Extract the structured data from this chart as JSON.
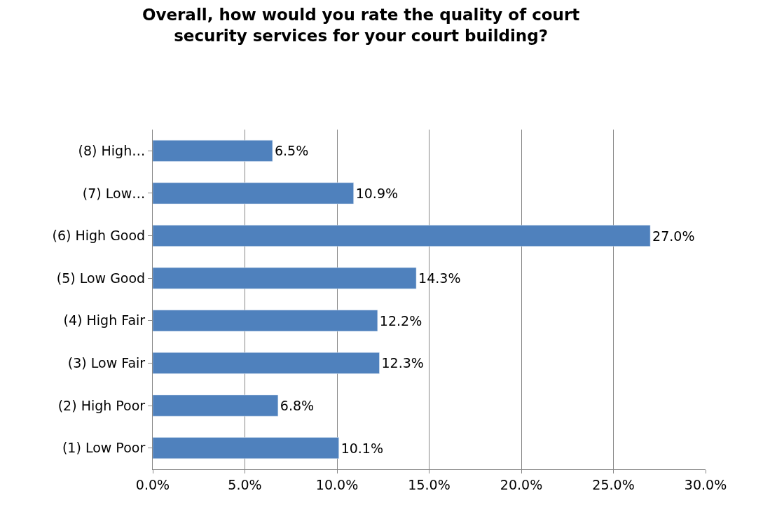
{
  "chart_data": {
    "type": "bar",
    "orientation": "horizontal",
    "title": "Overall, how would you rate the quality of court security services for your court building?",
    "categories": [
      "(8) High…",
      "(7) Low…",
      "(6) High Good",
      "(5) Low Good",
      "(4) High Fair",
      "(3) Low Fair",
      "(2) High Poor",
      "(1) Low Poor"
    ],
    "values": [
      6.5,
      10.9,
      27.0,
      14.3,
      12.2,
      12.3,
      6.8,
      10.1
    ],
    "value_labels": [
      "6.5%",
      "10.9%",
      "27.0%",
      "14.3%",
      "12.2%",
      "12.3%",
      "6.8%",
      "10.1%"
    ],
    "color": "#4f81bd",
    "xlim": [
      0,
      30
    ],
    "xticks": [
      {
        "value": 0,
        "label": "0.0%"
      },
      {
        "value": 5,
        "label": "5.0%"
      },
      {
        "value": 10,
        "label": "10.0%"
      },
      {
        "value": 15,
        "label": "15.0%"
      },
      {
        "value": 20,
        "label": "20.0%"
      },
      {
        "value": 25,
        "label": "25.0%"
      },
      {
        "value": 30,
        "label": "30.0%"
      }
    ],
    "grid": "x",
    "legend": false
  }
}
